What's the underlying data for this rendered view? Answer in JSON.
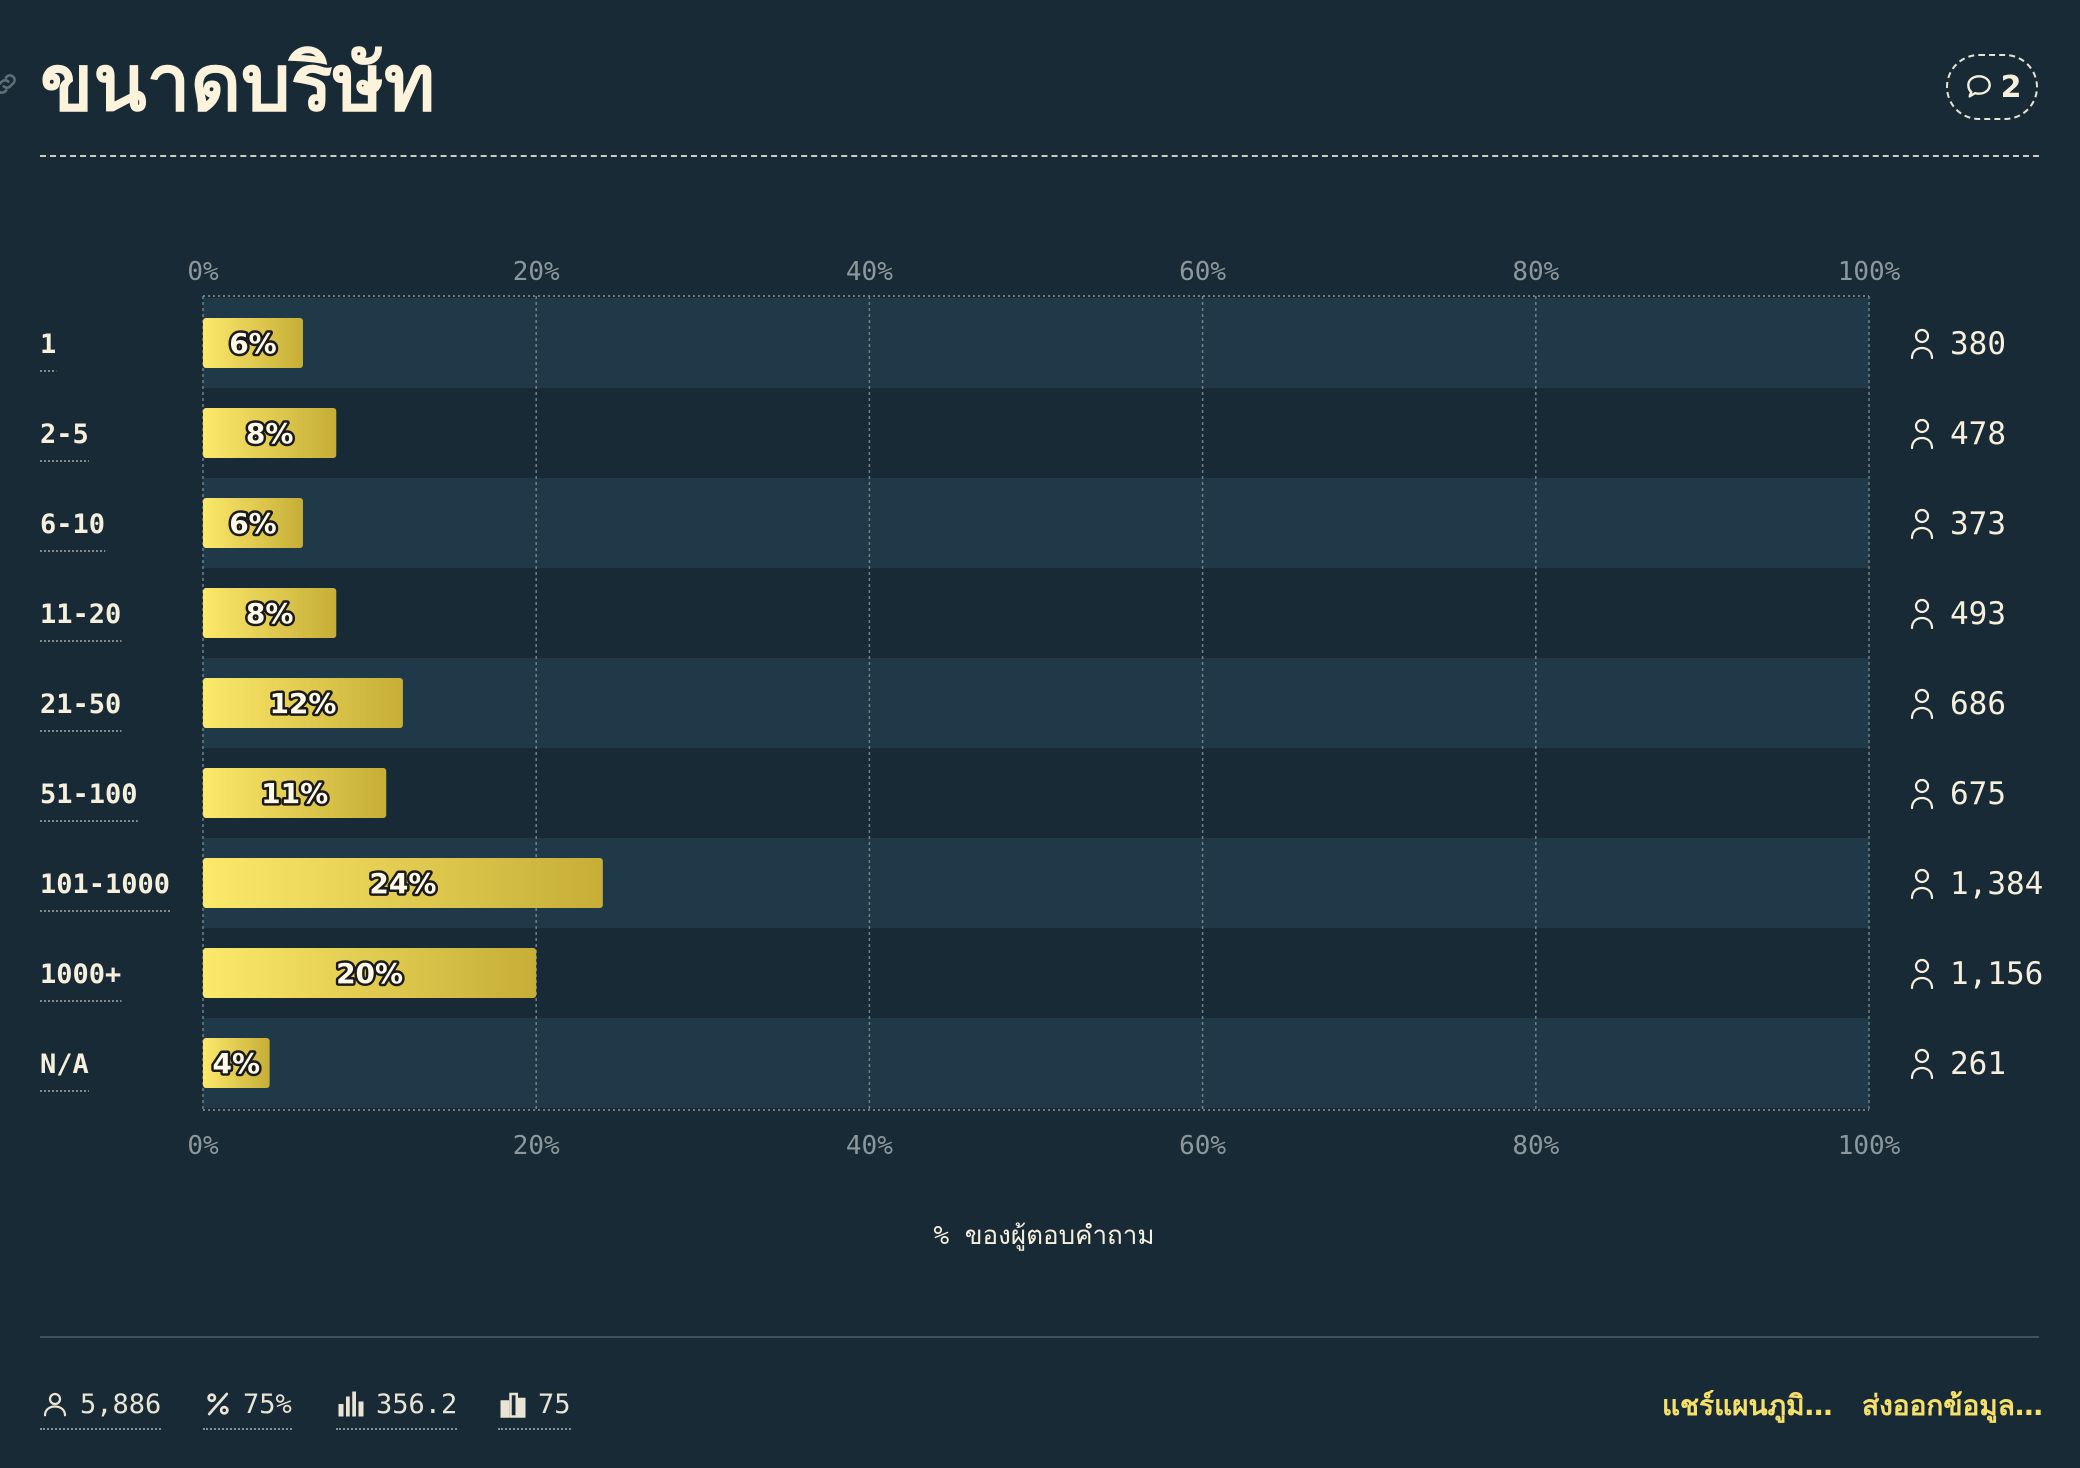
{
  "header": {
    "title": "ขนาดบริษัท",
    "comment_count": "2"
  },
  "chart_data": {
    "type": "bar",
    "orientation": "horizontal",
    "categories": [
      "1",
      "2-5",
      "6-10",
      "11-20",
      "21-50",
      "51-100",
      "101-1000",
      "1000+",
      "N/A"
    ],
    "values": [
      6,
      8,
      6,
      8,
      12,
      11,
      24,
      20,
      4
    ],
    "value_labels": [
      "6%",
      "8%",
      "6%",
      "8%",
      "12%",
      "11%",
      "24%",
      "20%",
      "4%"
    ],
    "respondents": [
      "380",
      "478",
      "373",
      "493",
      "686",
      "675",
      "1,384",
      "1,156",
      "261"
    ],
    "xlabel": "% ของผู้ตอบคำถาม",
    "xlim": [
      0,
      100
    ],
    "x_ticks": [
      "0%",
      "20%",
      "40%",
      "60%",
      "80%",
      "100%"
    ],
    "grid": true,
    "bar_gradient": [
      "#fce96a",
      "#c6ae37"
    ]
  },
  "footer": {
    "stats": [
      {
        "icon": "person-icon",
        "value": "5,886"
      },
      {
        "icon": "percent-icon",
        "value": "75%"
      },
      {
        "icon": "bar-chart-icon",
        "value": "356.2"
      },
      {
        "icon": "median-chart-icon",
        "value": "75"
      }
    ],
    "share_label": "แชร์แผนภูมิ…",
    "export_label": "ส่งออกข้อมูล…"
  }
}
